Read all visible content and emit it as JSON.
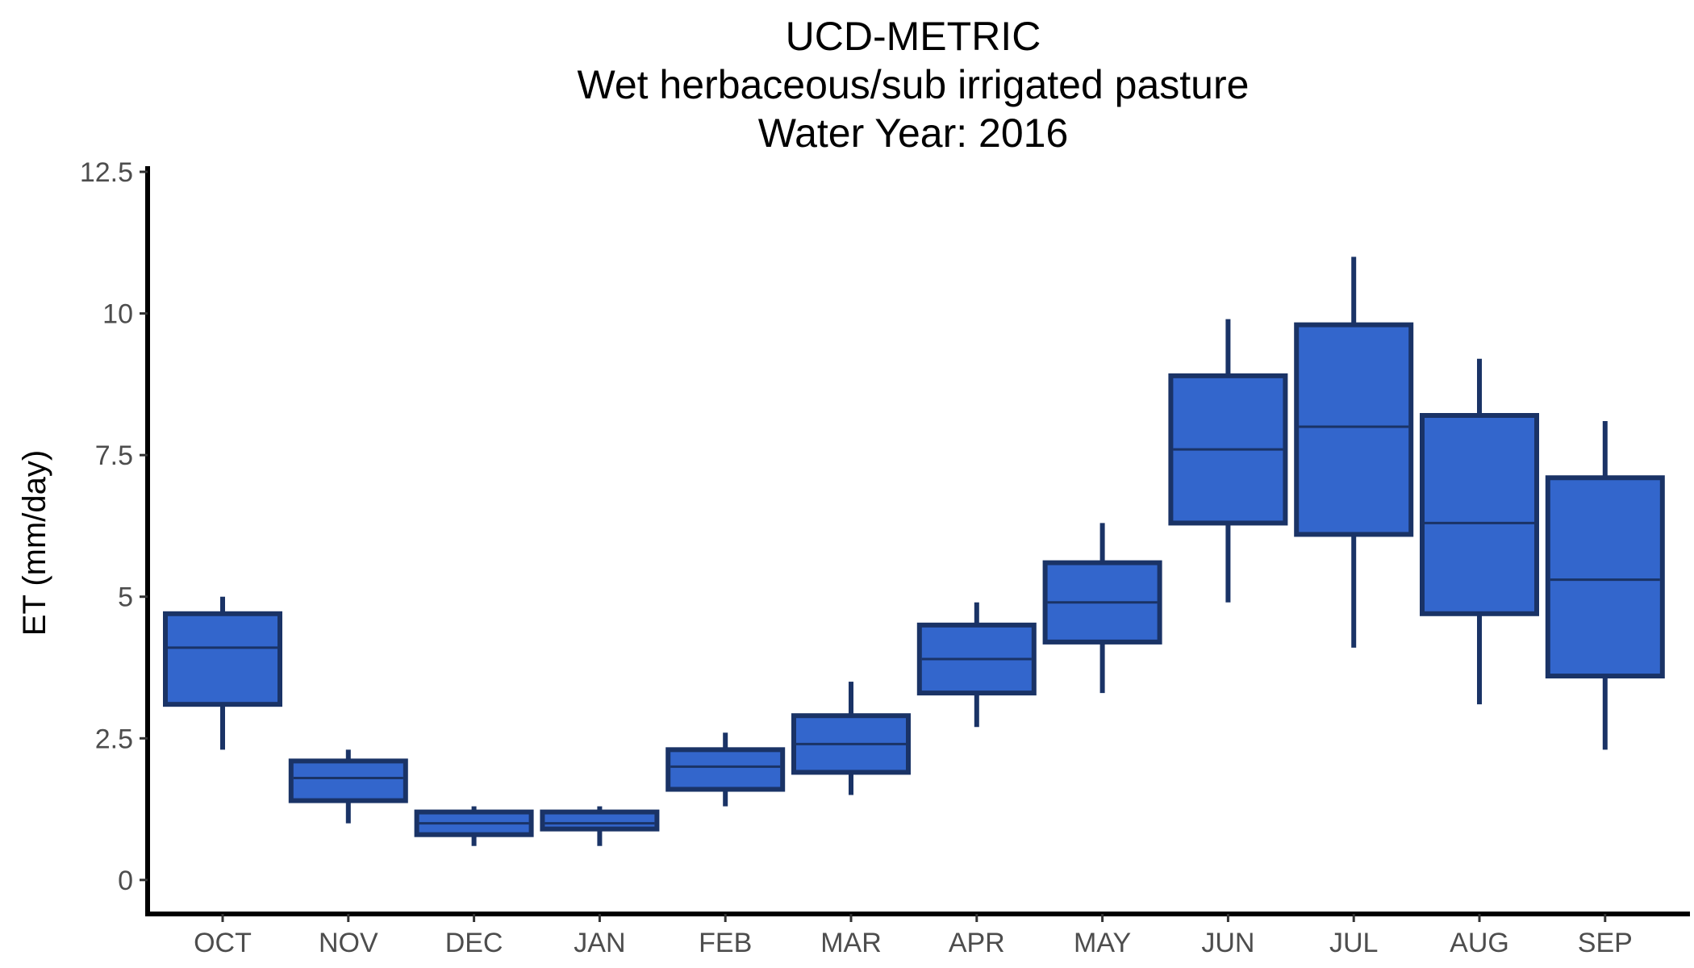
{
  "chart_data": {
    "type": "boxplot",
    "title": [
      "UCD-METRIC",
      "Wet herbaceous/sub irrigated pasture",
      "Water Year: 2016"
    ],
    "xlabel": "",
    "ylabel": "ET (mm/day)",
    "ylim": [
      -0.6,
      12.6
    ],
    "yticks": [
      0,
      2.5,
      5,
      7.5,
      10,
      12.5
    ],
    "ytick_labels": [
      "0",
      "2.5",
      "5",
      "7.5",
      "10",
      "12.5"
    ],
    "grid": false,
    "legend": "none",
    "colors": {
      "fill": "#3366cc",
      "stroke": "#1a3366"
    },
    "categories": [
      "OCT",
      "NOV",
      "DEC",
      "JAN",
      "FEB",
      "MAR",
      "APR",
      "MAY",
      "JUN",
      "JUL",
      "AUG",
      "SEP"
    ],
    "boxes": [
      {
        "min": 2.3,
        "q1": 3.1,
        "median": 4.1,
        "q3": 4.7,
        "max": 5.0
      },
      {
        "min": 1.0,
        "q1": 1.4,
        "median": 1.8,
        "q3": 2.1,
        "max": 2.3
      },
      {
        "min": 0.6,
        "q1": 0.8,
        "median": 1.0,
        "q3": 1.2,
        "max": 1.3
      },
      {
        "min": 0.6,
        "q1": 0.9,
        "median": 1.0,
        "q3": 1.2,
        "max": 1.3
      },
      {
        "min": 1.3,
        "q1": 1.6,
        "median": 2.0,
        "q3": 2.3,
        "max": 2.6
      },
      {
        "min": 1.5,
        "q1": 1.9,
        "median": 2.4,
        "q3": 2.9,
        "max": 3.5
      },
      {
        "min": 2.7,
        "q1": 3.3,
        "median": 3.9,
        "q3": 4.5,
        "max": 4.9
      },
      {
        "min": 3.3,
        "q1": 4.2,
        "median": 4.9,
        "q3": 5.6,
        "max": 6.3
      },
      {
        "min": 4.9,
        "q1": 6.3,
        "median": 7.6,
        "q3": 8.9,
        "max": 9.9
      },
      {
        "min": 4.1,
        "q1": 6.1,
        "median": 8.0,
        "q3": 9.8,
        "max": 11.0
      },
      {
        "min": 3.1,
        "q1": 4.7,
        "median": 6.3,
        "q3": 8.2,
        "max": 9.2
      },
      {
        "min": 2.3,
        "q1": 3.6,
        "median": 5.3,
        "q3": 7.1,
        "max": 8.1
      }
    ]
  }
}
